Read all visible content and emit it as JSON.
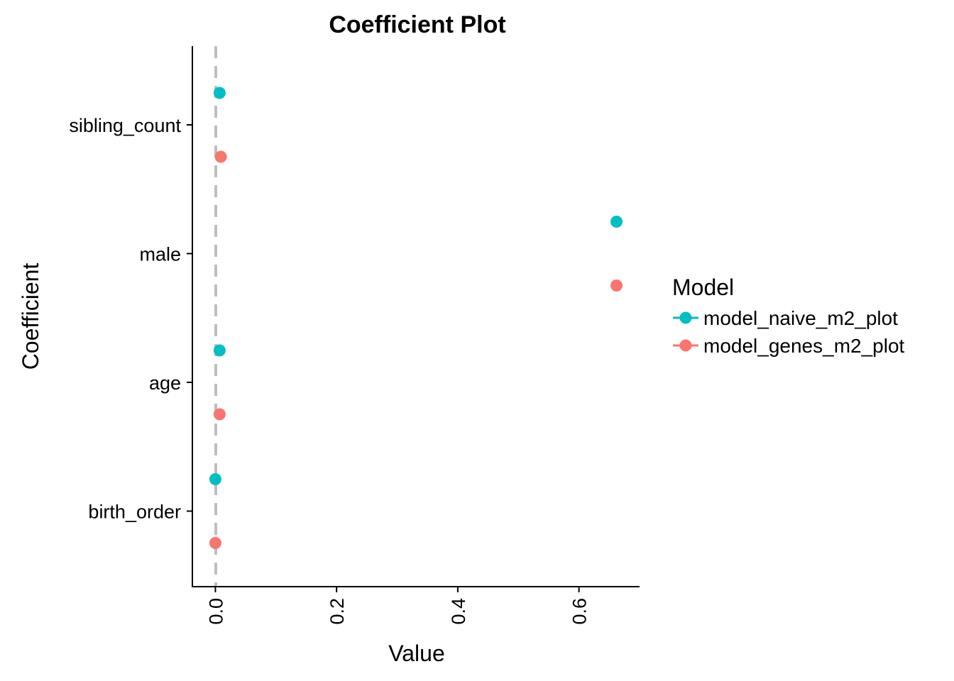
{
  "chart_data": {
    "type": "scatter",
    "title": "Coefficient Plot",
    "xlabel": "Value",
    "ylabel": "Coefficient",
    "categories": [
      "birth_order",
      "age",
      "male",
      "sibling_count"
    ],
    "x_ticks": [
      0.0,
      0.2,
      0.4,
      0.6
    ],
    "x_tick_labels": [
      "0.0",
      "0.2",
      "0.4",
      "0.6"
    ],
    "xlim": [
      -0.038,
      0.7
    ],
    "reference_line": {
      "x": 0,
      "color": "#bebebe",
      "style": "dashed"
    },
    "grid": false,
    "legend": {
      "title": "Model",
      "position": "right"
    },
    "series": [
      {
        "name": "model_naive_m2_plot",
        "color": "#00BFC4",
        "values": [
          0.0,
          0.007,
          0.662,
          0.007
        ]
      },
      {
        "name": "model_genes_m2_plot",
        "color": "#F8766D",
        "values": [
          0.0,
          0.007,
          0.662,
          0.009
        ]
      }
    ]
  }
}
